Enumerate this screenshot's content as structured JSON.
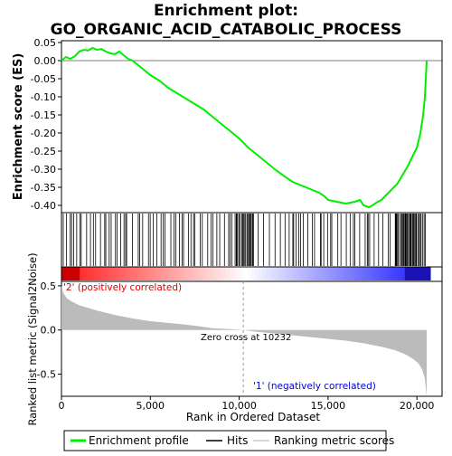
{
  "chart_data": {
    "type": "line",
    "title_line1": "Enrichment plot:",
    "title_line2": "GO_ORGANIC_ACID_CATABOLIC_PROCESS",
    "top_panel": {
      "ylabel": "Enrichment score (ES)",
      "ylim": [
        -0.42,
        0.055
      ],
      "yticks": [
        0.05,
        0.0,
        -0.05,
        -0.1,
        -0.15,
        -0.2,
        -0.25,
        -0.3,
        -0.35,
        -0.4
      ],
      "ytick_labels": [
        "0.05",
        "0.00",
        "-0.05",
        "-0.10",
        "-0.15",
        "-0.20",
        "-0.25",
        "-0.30",
        "-0.35",
        "-0.40"
      ],
      "series": [
        {
          "name": "Enrichment profile",
          "color": "#00ee00",
          "x": [
            0,
            250,
            500,
            750,
            1000,
            1250,
            1500,
            1750,
            2000,
            2250,
            2500,
            2750,
            3000,
            3250,
            3500,
            3750,
            4000,
            4500,
            5000,
            5500,
            6000,
            6500,
            7000,
            7500,
            8000,
            8500,
            9000,
            9500,
            10000,
            10500,
            11000,
            11500,
            12000,
            12500,
            13000,
            13500,
            14000,
            14500,
            14800,
            15000,
            15500,
            16000,
            16500,
            16800,
            17000,
            17300,
            17500,
            17800,
            18000,
            18300,
            18600,
            18900,
            19200,
            19500,
            19800,
            20000,
            20200,
            20350,
            20450,
            20500,
            20550
          ],
          "y": [
            0.0,
            0.01,
            0.005,
            0.012,
            0.025,
            0.03,
            0.028,
            0.035,
            0.03,
            0.032,
            0.025,
            0.02,
            0.018,
            0.025,
            0.015,
            0.005,
            0.0,
            -0.02,
            -0.04,
            -0.055,
            -0.075,
            -0.09,
            -0.105,
            -0.12,
            -0.135,
            -0.155,
            -0.175,
            -0.195,
            -0.215,
            -0.24,
            -0.26,
            -0.28,
            -0.3,
            -0.318,
            -0.335,
            -0.345,
            -0.355,
            -0.365,
            -0.375,
            -0.385,
            -0.39,
            -0.395,
            -0.39,
            -0.385,
            -0.4,
            -0.405,
            -0.4,
            -0.39,
            -0.385,
            -0.37,
            -0.355,
            -0.34,
            -0.315,
            -0.29,
            -0.26,
            -0.24,
            -0.2,
            -0.15,
            -0.1,
            -0.05,
            0.0
          ]
        }
      ]
    },
    "hits_panel": {
      "legend_name": "Hits"
    },
    "bottom_panel": {
      "ylabel": "Ranked list metric (Signal2Noise)",
      "xlabel": "Rank in Ordered Dataset",
      "xlim": [
        0,
        20700
      ],
      "ylim": [
        -0.75,
        0.55
      ],
      "yticks": [
        0.5,
        0.0,
        -0.5
      ],
      "ytick_labels": [
        "0.5",
        "0.0",
        "-0.5"
      ],
      "xticks": [
        0,
        5000,
        10000,
        15000,
        20000
      ],
      "xtick_labels": [
        "0",
        "5,000",
        "10,000",
        "15,000",
        "20,000"
      ],
      "zero_cross_label": "Zero cross at 10232",
      "zero_cross_x": 10232,
      "pos_label": "'2' (positively correlated)",
      "neg_label": "'1' (negatively correlated)",
      "metric_curve": {
        "name": "Ranking metric scores",
        "x": [
          0,
          100,
          300,
          600,
          1000,
          2000,
          3000,
          4000,
          5000,
          6000,
          7000,
          7800,
          8500,
          9500,
          10232,
          11000,
          12000,
          13000,
          14000,
          15000,
          16000,
          17000,
          18000,
          18800,
          19400,
          19800,
          20100,
          20300,
          20450,
          20550
        ],
        "y": [
          0.5,
          0.42,
          0.36,
          0.32,
          0.28,
          0.22,
          0.17,
          0.13,
          0.1,
          0.08,
          0.06,
          0.04,
          0.02,
          0.01,
          0.0,
          -0.02,
          -0.04,
          -0.06,
          -0.08,
          -0.1,
          -0.12,
          -0.15,
          -0.19,
          -0.23,
          -0.28,
          -0.33,
          -0.38,
          -0.45,
          -0.55,
          -0.75
        ]
      }
    },
    "legend": {
      "items": [
        "Enrichment profile",
        "Hits",
        "Ranking metric scores"
      ],
      "placement": "bottom"
    }
  }
}
